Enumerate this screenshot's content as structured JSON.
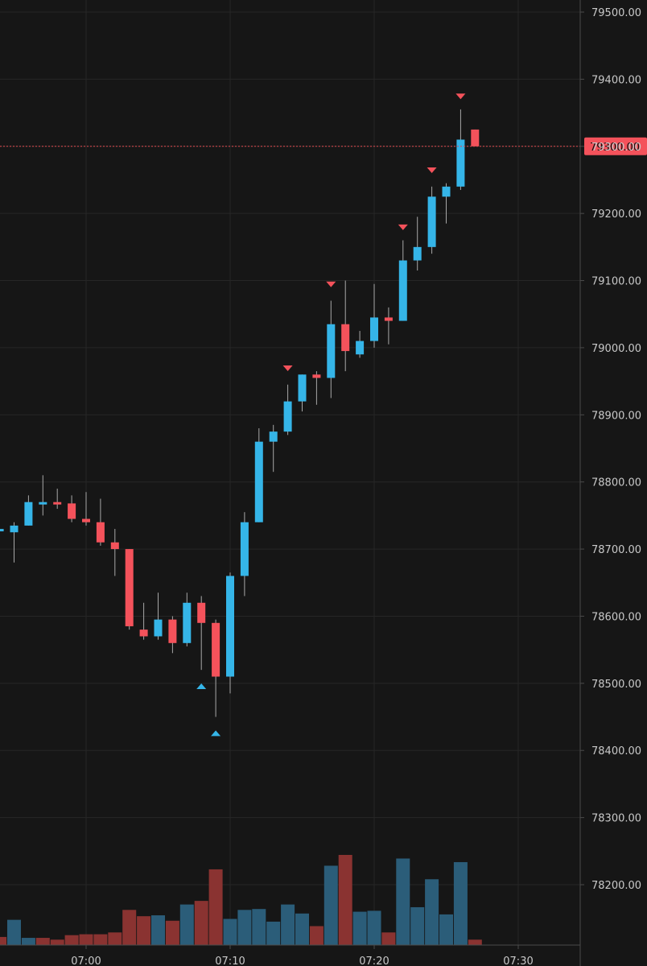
{
  "colors": {
    "background": "#161616",
    "grid": "#262626",
    "axis_line": "#4a4a4a",
    "up": "#35b5e8",
    "down": "#f4525b",
    "volume_up": "#2b5d79",
    "volume_down": "#8a3331",
    "wick": "#a8a8a8",
    "axis_text": "#c9c9c9",
    "price_line": "#e0484f"
  },
  "chart_data": {
    "type": "candlestick",
    "x_ticks": [
      {
        "label": "07:00",
        "minute": 0
      },
      {
        "label": "07:10",
        "minute": 10
      },
      {
        "label": "07:20",
        "minute": 20
      },
      {
        "label": "07:30",
        "minute": 30
      }
    ],
    "y_ticks": [
      "78200.00",
      "78300.00",
      "78400.00",
      "78500.00",
      "78600.00",
      "78700.00",
      "78800.00",
      "78900.00",
      "79000.00",
      "79100.00",
      "79200.00",
      "79300.00",
      "79400.00",
      "79500.00"
    ],
    "ylim": [
      78100,
      79515
    ],
    "current_price": {
      "value": 79300,
      "label": "79300.00"
    },
    "candles": [
      {
        "minute": -6,
        "open": 78730,
        "high": 78730,
        "low": 78730,
        "close": 78730
      },
      {
        "minute": -5,
        "open": 78725,
        "high": 78740,
        "low": 78680,
        "close": 78735
      },
      {
        "minute": -4,
        "open": 78735,
        "high": 78780,
        "low": 78735,
        "close": 78770
      },
      {
        "minute": -3,
        "open": 78770,
        "high": 78810,
        "low": 78750,
        "close": 78770
      },
      {
        "minute": -2,
        "open": 78770,
        "high": 78790,
        "low": 78760,
        "close": 78768
      },
      {
        "minute": -1,
        "open": 78768,
        "high": 78780,
        "low": 78740,
        "close": 78745
      },
      {
        "minute": 0,
        "open": 78745,
        "high": 78785,
        "low": 78735,
        "close": 78740
      },
      {
        "minute": 1,
        "open": 78740,
        "high": 78775,
        "low": 78705,
        "close": 78710
      },
      {
        "minute": 2,
        "open": 78710,
        "high": 78730,
        "low": 78660,
        "close": 78700
      },
      {
        "minute": 3,
        "open": 78700,
        "high": 78700,
        "low": 78580,
        "close": 78585
      },
      {
        "minute": 4,
        "open": 78580,
        "high": 78620,
        "low": 78565,
        "close": 78570
      },
      {
        "minute": 5,
        "open": 78570,
        "high": 78635,
        "low": 78565,
        "close": 78595
      },
      {
        "minute": 6,
        "open": 78595,
        "high": 78600,
        "low": 78545,
        "close": 78560
      },
      {
        "minute": 7,
        "open": 78560,
        "high": 78635,
        "low": 78555,
        "close": 78620
      },
      {
        "minute": 8,
        "open": 78620,
        "high": 78630,
        "low": 78520,
        "close": 78590
      },
      {
        "minute": 9,
        "open": 78590,
        "high": 78595,
        "low": 78450,
        "close": 78510
      },
      {
        "minute": 10,
        "open": 78510,
        "high": 78665,
        "low": 78485,
        "close": 78660
      },
      {
        "minute": 11,
        "open": 78660,
        "high": 78755,
        "low": 78630,
        "close": 78740
      },
      {
        "minute": 12,
        "open": 78740,
        "high": 78880,
        "low": 78740,
        "close": 78860
      },
      {
        "minute": 13,
        "open": 78860,
        "high": 78885,
        "low": 78815,
        "close": 78875
      },
      {
        "minute": 14,
        "open": 78875,
        "high": 78945,
        "low": 78870,
        "close": 78920
      },
      {
        "minute": 15,
        "open": 78920,
        "high": 78960,
        "low": 78905,
        "close": 78960
      },
      {
        "minute": 16,
        "open": 78960,
        "high": 78965,
        "low": 78915,
        "close": 78955
      },
      {
        "minute": 17,
        "open": 78955,
        "high": 79070,
        "low": 78925,
        "close": 79035
      },
      {
        "minute": 18,
        "open": 79035,
        "high": 79100,
        "low": 78965,
        "close": 78995
      },
      {
        "minute": 19,
        "open": 78990,
        "high": 79025,
        "low": 78985,
        "close": 79010
      },
      {
        "minute": 20,
        "open": 79010,
        "high": 79095,
        "low": 79000,
        "close": 79045
      },
      {
        "minute": 21,
        "open": 79045,
        "high": 79060,
        "low": 79005,
        "close": 79040
      },
      {
        "minute": 22,
        "open": 79040,
        "high": 79160,
        "low": 79040,
        "close": 79130
      },
      {
        "minute": 23,
        "open": 79130,
        "high": 79195,
        "low": 79115,
        "close": 79150
      },
      {
        "minute": 24,
        "open": 79150,
        "high": 79240,
        "low": 79140,
        "close": 79225
      },
      {
        "minute": 25,
        "open": 79225,
        "high": 79245,
        "low": 79185,
        "close": 79240
      },
      {
        "minute": 26,
        "open": 79240,
        "high": 79355,
        "low": 79235,
        "close": 79310
      },
      {
        "minute": 27,
        "open": 79325,
        "high": 79325,
        "low": 79300,
        "close": 79300
      }
    ],
    "volume": [
      {
        "minute": -6,
        "level": 0.09,
        "dir": "down"
      },
      {
        "minute": -5,
        "level": 0.28,
        "dir": "up"
      },
      {
        "minute": -4,
        "level": 0.08,
        "dir": "up"
      },
      {
        "minute": -3,
        "level": 0.08,
        "dir": "down"
      },
      {
        "minute": -2,
        "level": 0.06,
        "dir": "down"
      },
      {
        "minute": -1,
        "level": 0.11,
        "dir": "down"
      },
      {
        "minute": 0,
        "level": 0.12,
        "dir": "down"
      },
      {
        "minute": 1,
        "level": 0.12,
        "dir": "down"
      },
      {
        "minute": 2,
        "level": 0.14,
        "dir": "down"
      },
      {
        "minute": 3,
        "level": 0.39,
        "dir": "down"
      },
      {
        "minute": 4,
        "level": 0.32,
        "dir": "down"
      },
      {
        "minute": 5,
        "level": 0.33,
        "dir": "up"
      },
      {
        "minute": 6,
        "level": 0.27,
        "dir": "down"
      },
      {
        "minute": 7,
        "level": 0.45,
        "dir": "up"
      },
      {
        "minute": 8,
        "level": 0.49,
        "dir": "down"
      },
      {
        "minute": 9,
        "level": 0.84,
        "dir": "down"
      },
      {
        "minute": 10,
        "level": 0.29,
        "dir": "up"
      },
      {
        "minute": 11,
        "level": 0.39,
        "dir": "up"
      },
      {
        "minute": 12,
        "level": 0.4,
        "dir": "up"
      },
      {
        "minute": 13,
        "level": 0.26,
        "dir": "up"
      },
      {
        "minute": 14,
        "level": 0.45,
        "dir": "up"
      },
      {
        "minute": 15,
        "level": 0.35,
        "dir": "up"
      },
      {
        "minute": 16,
        "level": 0.21,
        "dir": "down"
      },
      {
        "minute": 17,
        "level": 0.88,
        "dir": "up"
      },
      {
        "minute": 18,
        "level": 1.0,
        "dir": "down"
      },
      {
        "minute": 19,
        "level": 0.37,
        "dir": "up"
      },
      {
        "minute": 20,
        "level": 0.38,
        "dir": "up"
      },
      {
        "minute": 21,
        "level": 0.14,
        "dir": "down"
      },
      {
        "minute": 22,
        "level": 0.96,
        "dir": "up"
      },
      {
        "minute": 23,
        "level": 0.42,
        "dir": "up"
      },
      {
        "minute": 24,
        "level": 0.73,
        "dir": "up"
      },
      {
        "minute": 25,
        "level": 0.34,
        "dir": "up"
      },
      {
        "minute": 26,
        "level": 0.92,
        "dir": "up"
      },
      {
        "minute": 27,
        "level": 0.06,
        "dir": "down"
      }
    ],
    "markers": [
      {
        "minute": 8,
        "price": 78495,
        "direction": "up"
      },
      {
        "minute": 9,
        "price": 78425,
        "direction": "up"
      },
      {
        "minute": 14,
        "price": 78970,
        "direction": "down"
      },
      {
        "minute": 17,
        "price": 79095,
        "direction": "down"
      },
      {
        "minute": 22,
        "price": 79180,
        "direction": "down"
      },
      {
        "minute": 24,
        "price": 79265,
        "direction": "down"
      },
      {
        "minute": 26,
        "price": 79375,
        "direction": "down"
      }
    ]
  }
}
